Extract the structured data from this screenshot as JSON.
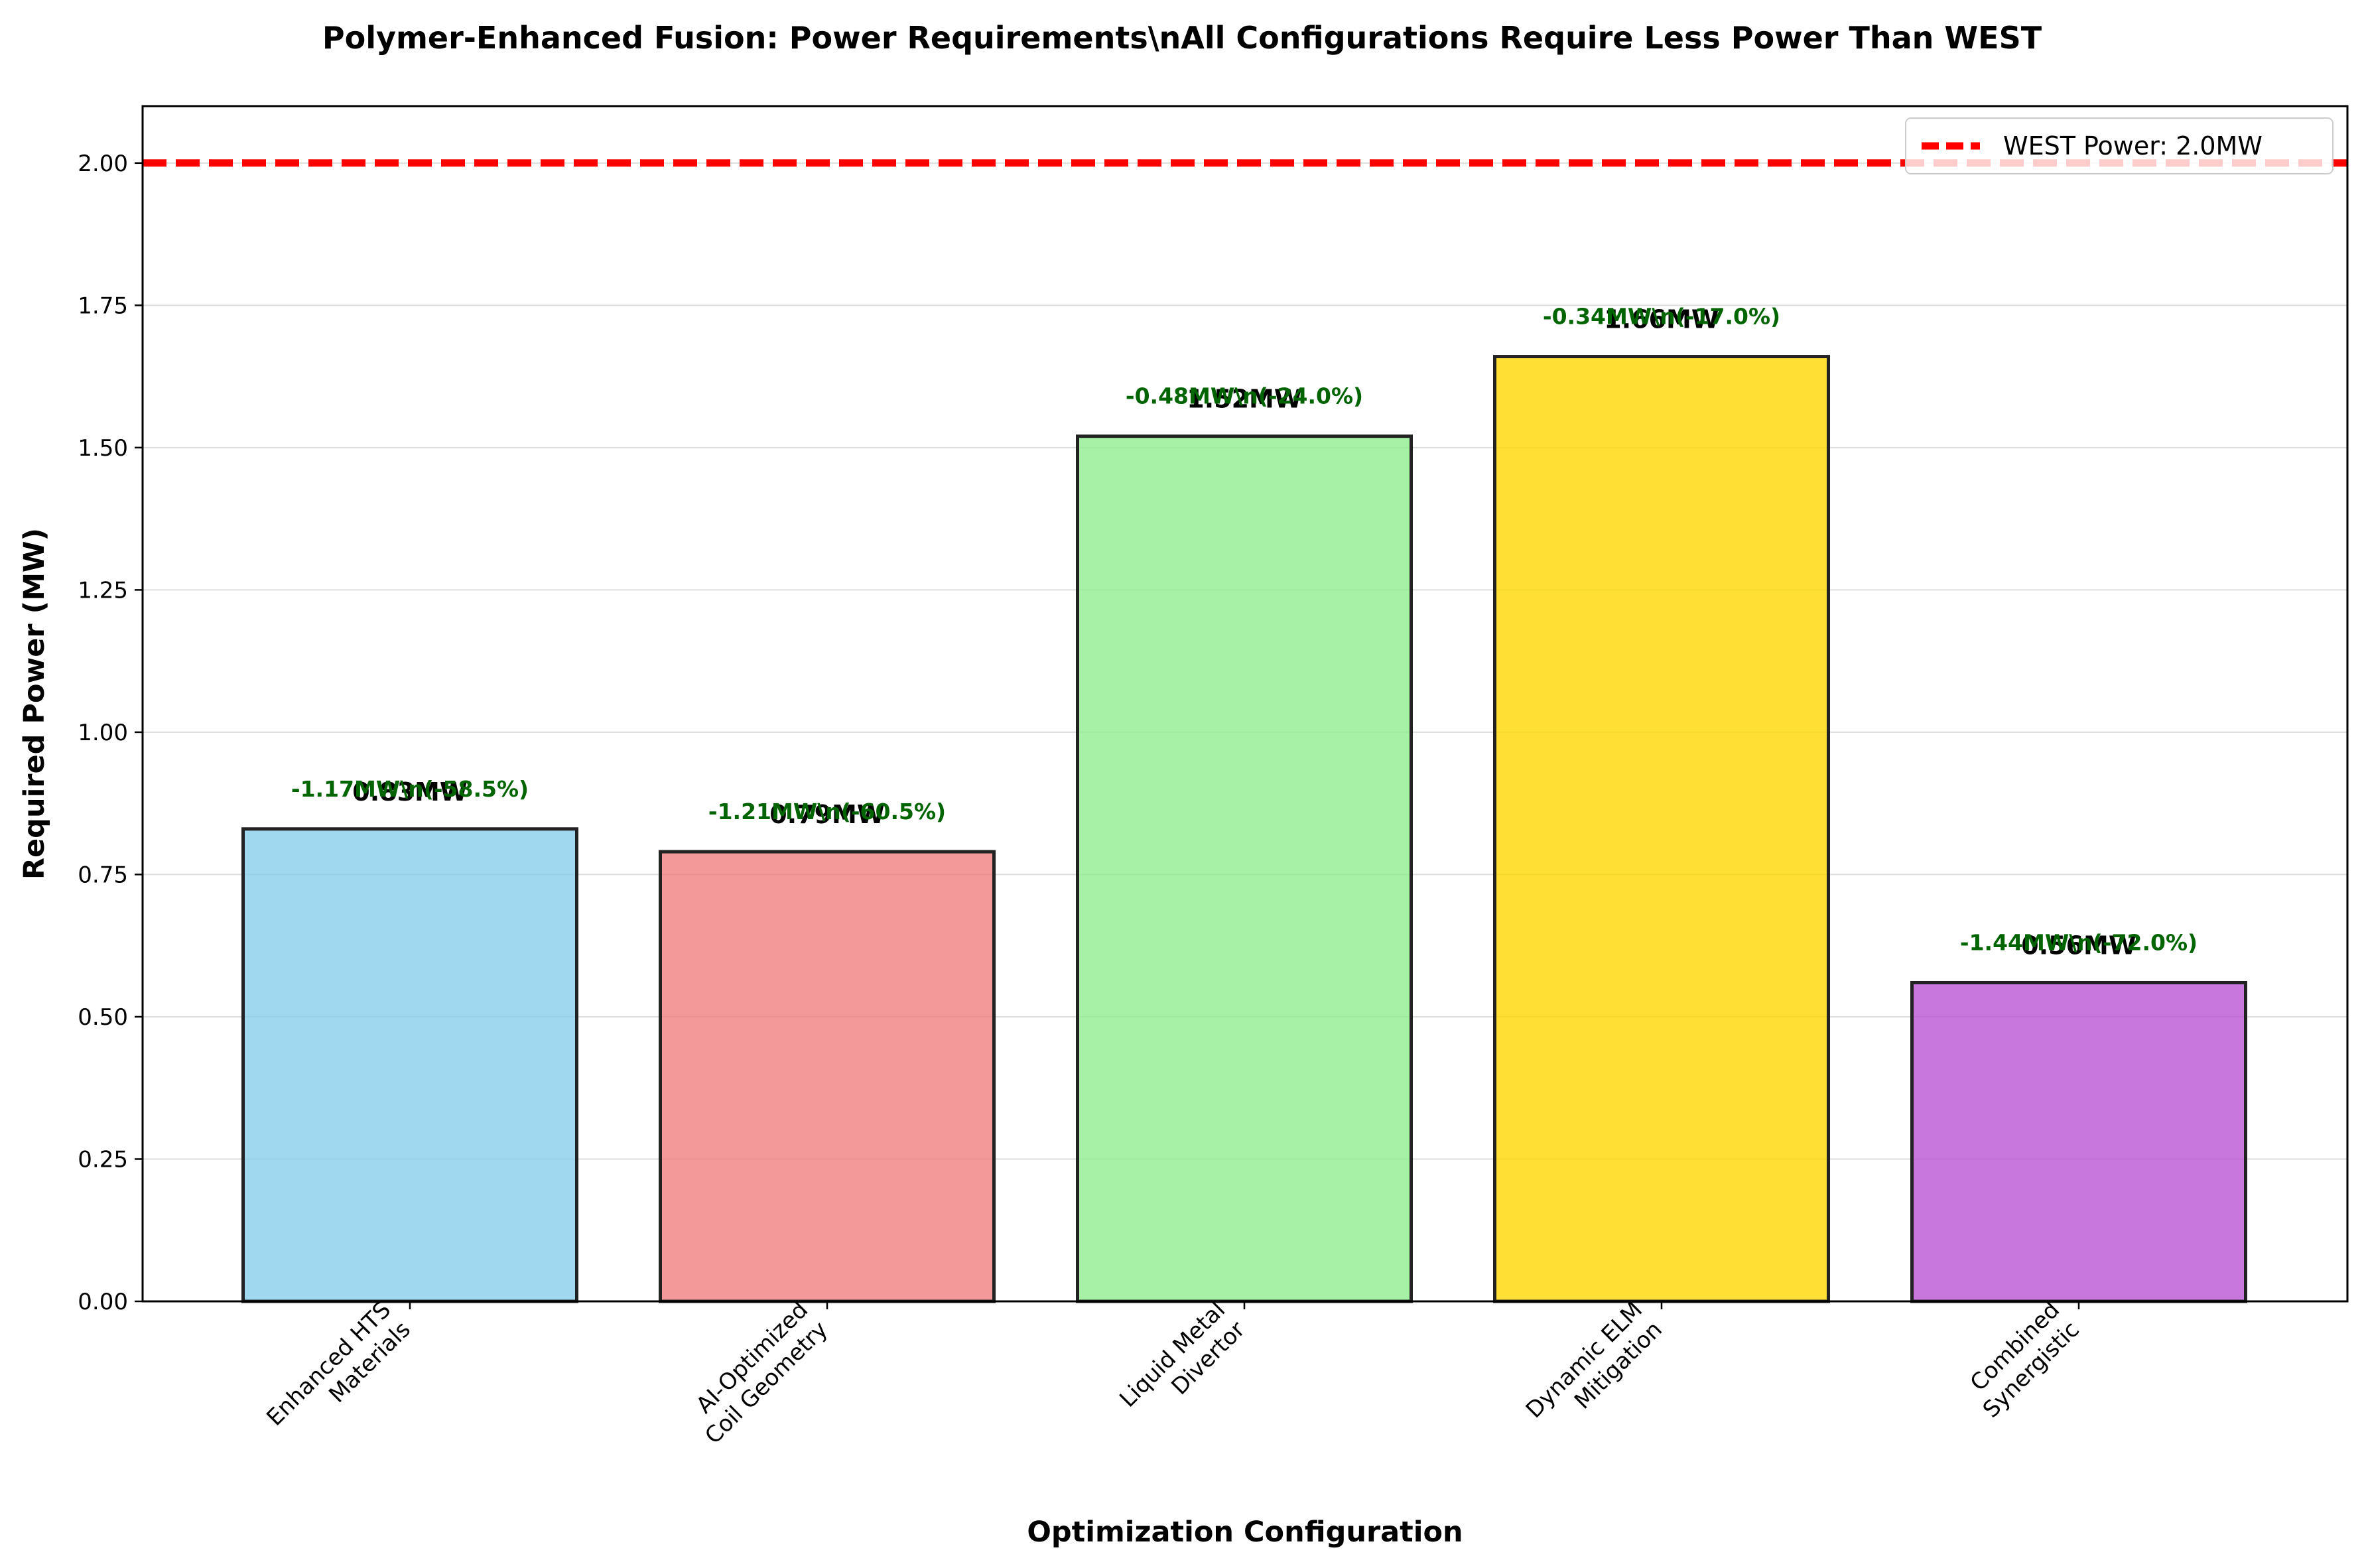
{
  "chart_data": {
    "type": "bar",
    "title": "Polymer-Enhanced Fusion: Power Requirements\\nAll Configurations Require Less Power Than WEST",
    "xlabel": "Optimization Configuration",
    "ylabel": "Required Power (MW)",
    "ylim": [
      0,
      2.1
    ],
    "yticks": [
      "0.00",
      "0.25",
      "0.50",
      "0.75",
      "1.00",
      "1.25",
      "1.50",
      "1.75",
      "2.00"
    ],
    "grid": "horizontal",
    "legend_position": "top-right",
    "categories": [
      [
        "Enhanced HTS",
        "Materials"
      ],
      [
        "AI-Optimized",
        "Coil Geometry"
      ],
      [
        "Liquid Metal",
        "Divertor"
      ],
      [
        "Dynamic ELM",
        "Mitigation"
      ],
      [
        "Combined",
        "Synergistic"
      ]
    ],
    "values": [
      0.83,
      0.79,
      1.52,
      1.66,
      0.56
    ],
    "value_labels": [
      "0.83MW",
      "0.79MW",
      "1.52MW",
      "1.66MW",
      "0.56MW"
    ],
    "delta_labels": [
      "-1.17MW\\n(-58.5%)",
      "-1.21MW\\n(-60.5%)",
      "-0.48MW\\n(-24.0%)",
      "-0.34MW\\n(-17.0%)",
      "-1.44MW\\n(-72.0%)"
    ],
    "colors": [
      "#87CEEB",
      "#F08080",
      "#90EE90",
      "#FFD700",
      "#BA55D3"
    ],
    "reference_line": {
      "value": 2.0,
      "label": "WEST Power: 2.0MW",
      "color": "#FF0000"
    }
  }
}
